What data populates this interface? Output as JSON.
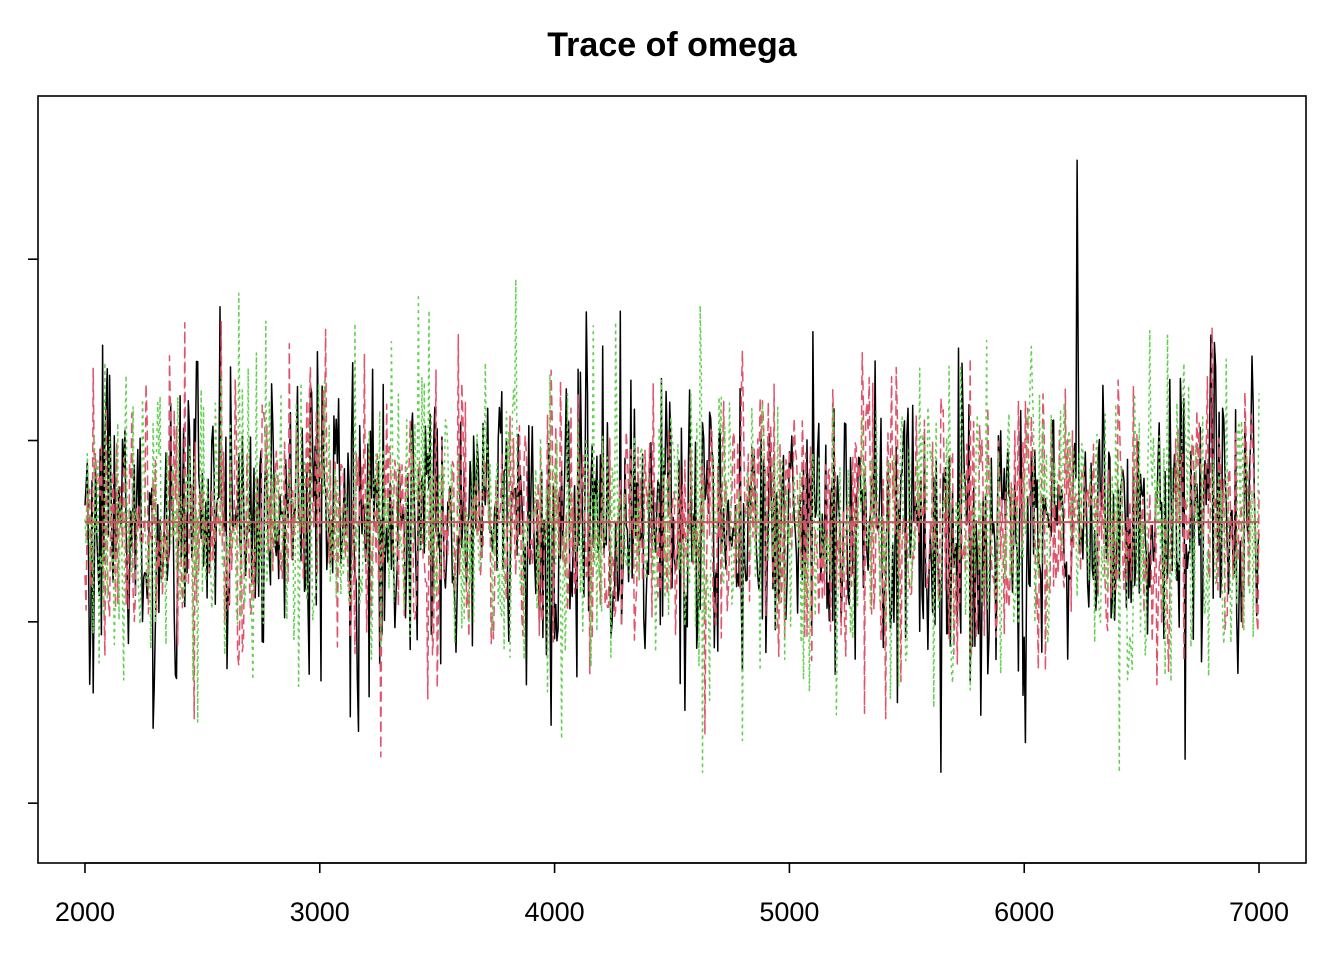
{
  "chart_data": {
    "type": "line",
    "title": "Trace of omega",
    "xlabel": "",
    "ylabel": "",
    "xlim": [
      1800,
      7200
    ],
    "ylim": [
      -0.33,
      3.9
    ],
    "x_ticks": [
      "2000",
      "3000",
      "4000",
      "5000",
      "6000",
      "7000"
    ],
    "x_tick_values": [
      2000,
      3000,
      4000,
      5000,
      6000,
      7000
    ],
    "y_tick_values": [
      0,
      1,
      2,
      3
    ],
    "y_tick_labels_visible": false,
    "iterations": [
      2000,
      7000
    ],
    "chain_count": 3,
    "chain_colors": [
      "#000000",
      "#DF536B",
      "#61D04F"
    ],
    "chain_line_styles": [
      "solid",
      "dashed",
      "dotted"
    ],
    "chain_mean": 1.55,
    "chain_sd": 0.42,
    "chain_range": [
      0.17,
      3.78
    ],
    "mean_line_color": "#B85C5C",
    "grid": false,
    "legend": "none"
  }
}
